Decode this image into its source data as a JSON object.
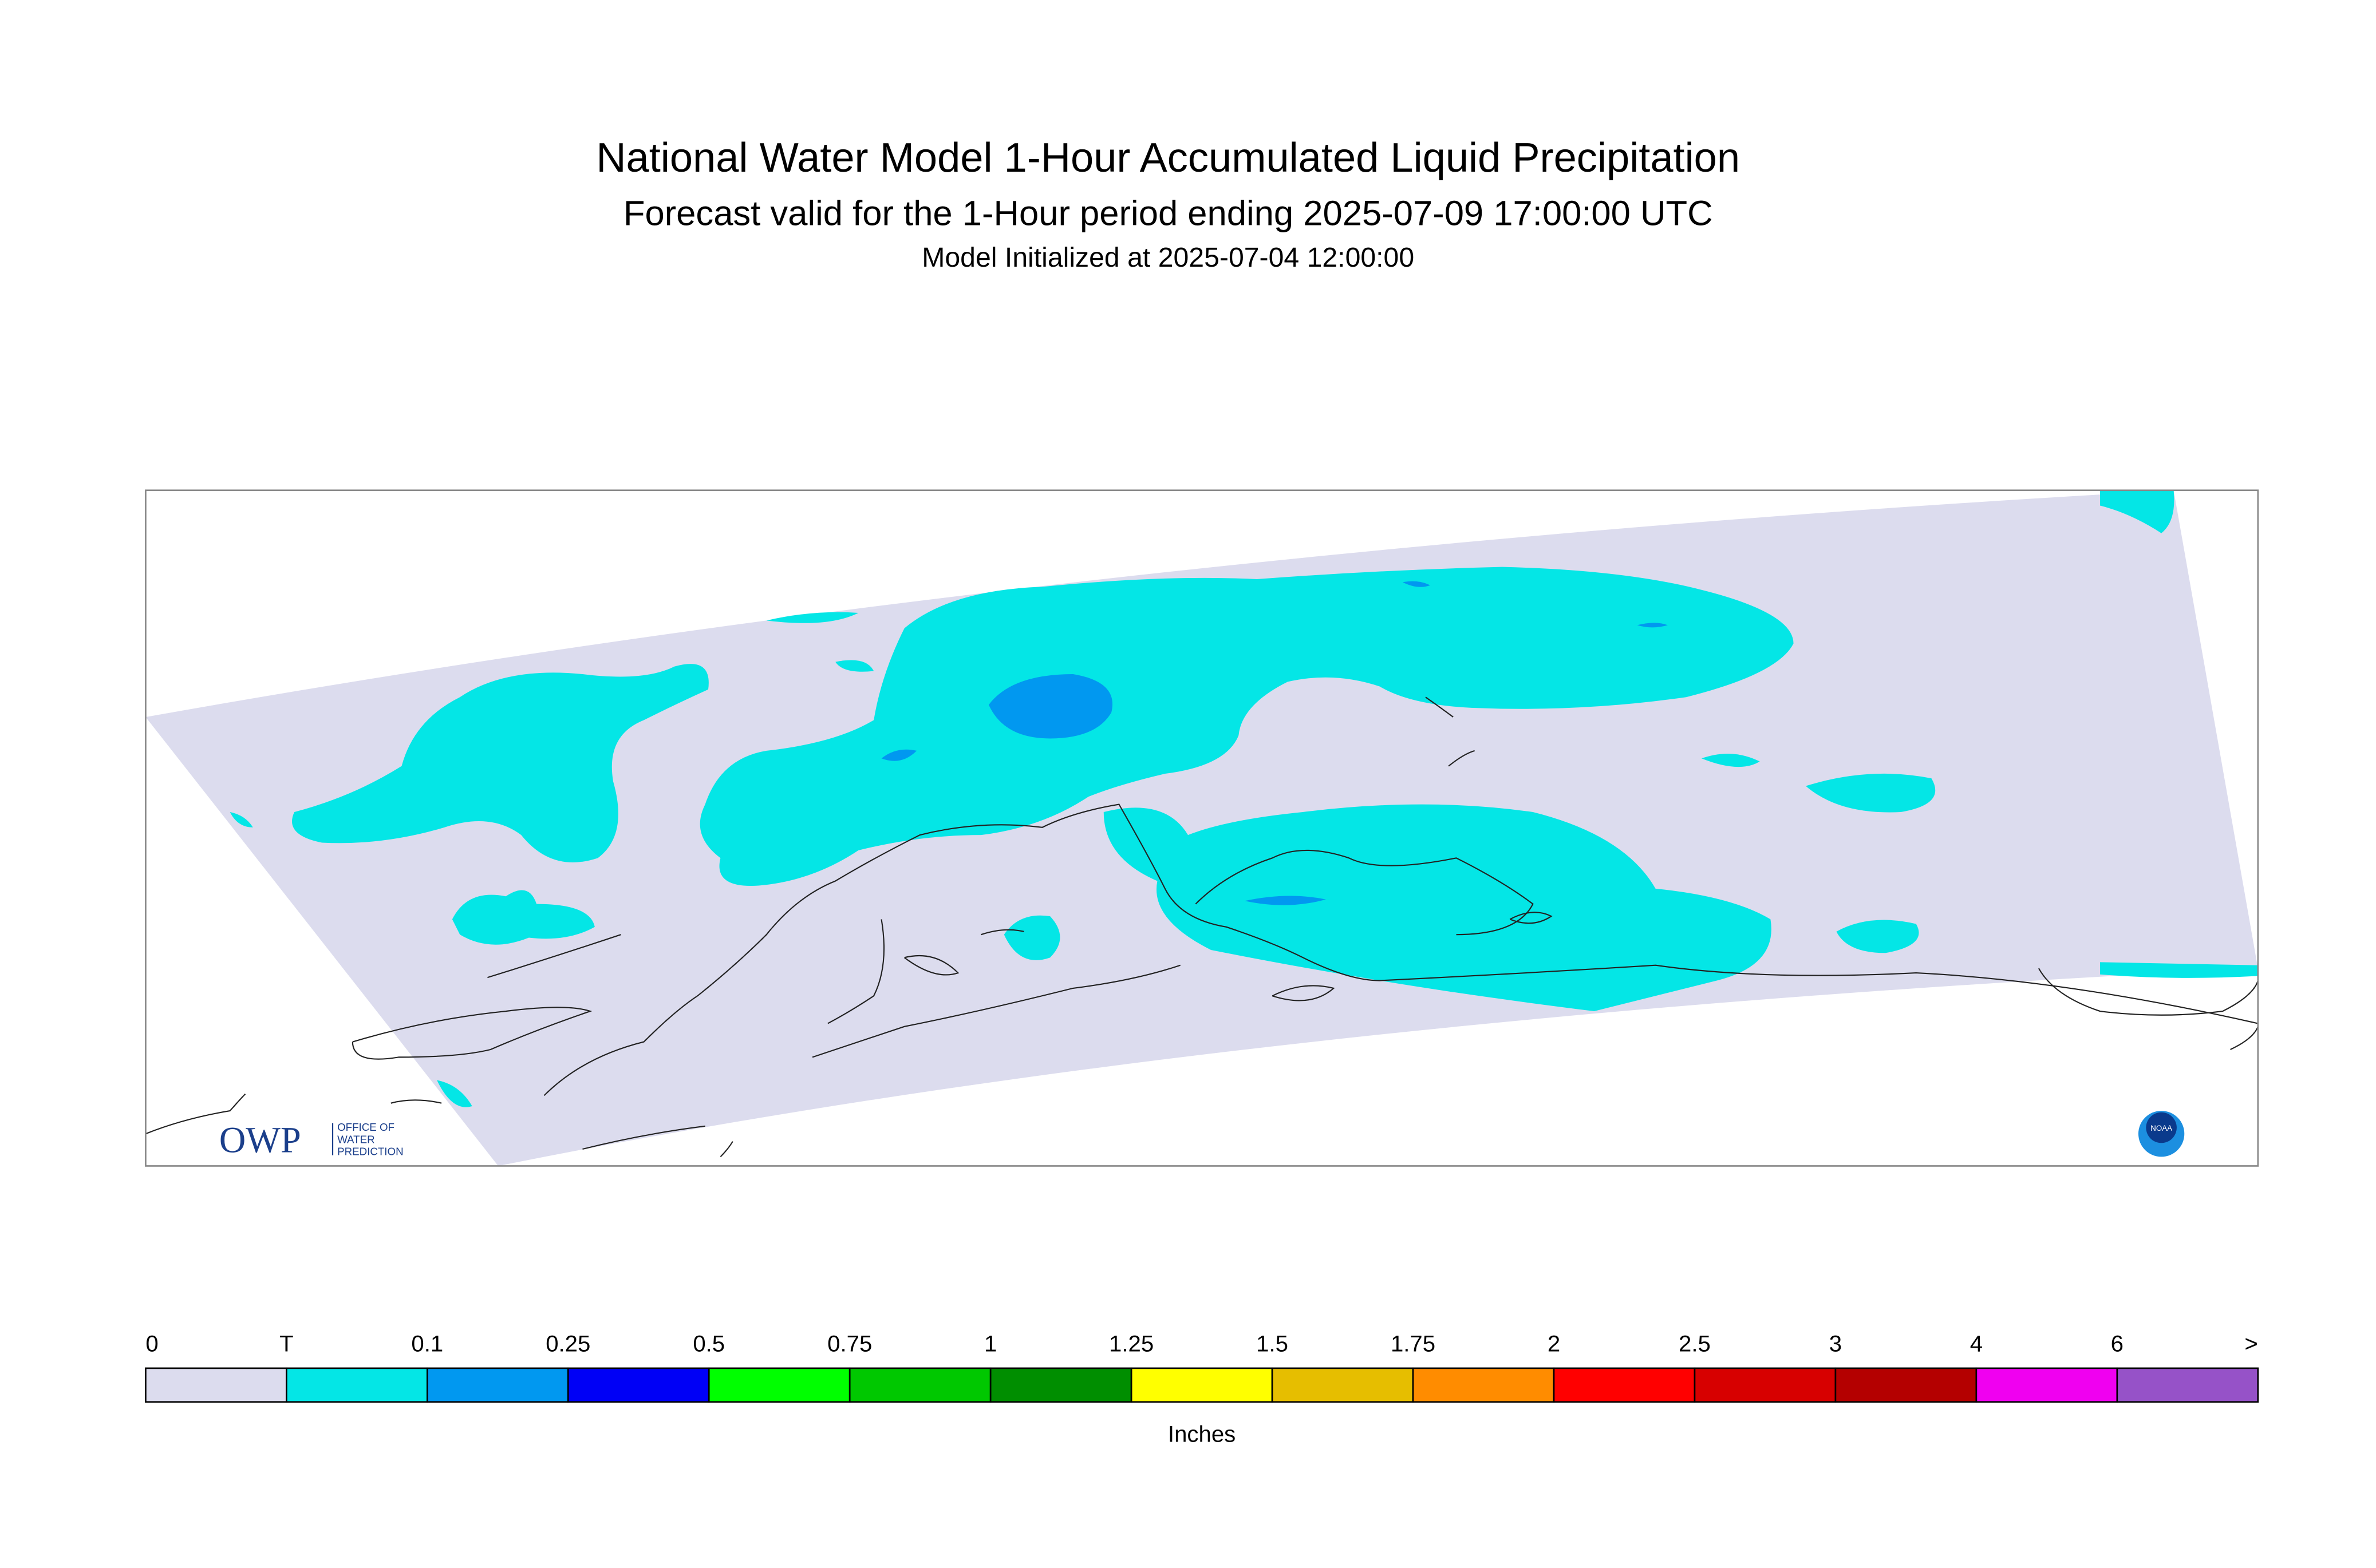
{
  "header": {
    "title": "National Water Model 1-Hour Accumulated Liquid Precipitation",
    "subtitle": "Forecast valid for the 1-Hour period ending 2025-07-09 17:00:00 UTC",
    "initialized": "Model Initialized at 2025-07-04 12:00:00"
  },
  "legend": {
    "labels": [
      "0",
      "T",
      "0.1",
      "0.25",
      "0.5",
      "0.75",
      "1",
      "1.25",
      "1.5",
      "1.75",
      "2",
      "2.5",
      "3",
      "4",
      "6",
      ">"
    ],
    "colors": [
      "#dcdcee",
      "#04e6e6",
      "#0198f0",
      "#0000f6",
      "#00ff00",
      "#00c800",
      "#008e00",
      "#ffff00",
      "#e6be00",
      "#ff8c00",
      "#ff0000",
      "#d70000",
      "#b40000",
      "#f000f0",
      "#9652c8"
    ],
    "units": "Inches"
  },
  "logos": {
    "owp": "OWP",
    "owp_text": [
      "OFFICE OF",
      "WATER",
      "PREDICTION"
    ],
    "noaa": "NOAA"
  }
}
